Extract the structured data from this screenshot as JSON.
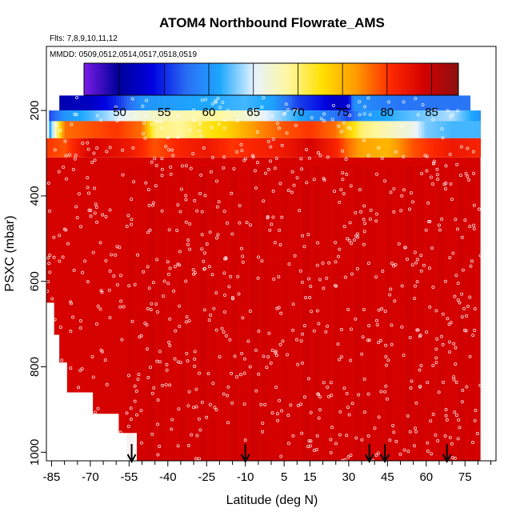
{
  "chart_data": {
    "type": "heatmap",
    "title": "ATOM4 Northbound Flowrate_AMS",
    "flights_label": "Flts: 7,8,9,10,11,12",
    "dates_label": "MMDD: 0509,0512,0514,0517,0518,0519",
    "xlabel": "Latitude (deg N)",
    "ylabel": "PSXC (mbar)",
    "xlim": [
      -87,
      87
    ],
    "ylim": [
      1020,
      50
    ],
    "y_reversed": true,
    "x_ticks": [
      -85,
      -70,
      -55,
      -40,
      -25,
      -10,
      5,
      15,
      30,
      45,
      60,
      75
    ],
    "x_minor_ticks": [
      -80,
      -75,
      -65,
      -60,
      -50,
      -45,
      -35,
      -30,
      -20,
      -15,
      -5,
      0,
      10,
      20,
      25,
      35,
      40,
      50,
      55,
      65,
      70,
      80,
      85
    ],
    "y_ticks": [
      200,
      400,
      600,
      800,
      1000
    ],
    "colorbar": {
      "min": 46,
      "max": 88,
      "ticks": [
        50,
        55,
        60,
        65,
        70,
        75,
        80,
        85
      ],
      "colors": [
        "#7a1be6",
        "#00009a",
        "#0000e0",
        "#2a6cf5",
        "#1ea8ff",
        "#e6f3ff",
        "#fff7a0",
        "#ffe000",
        "#ff9a00",
        "#ff2a00",
        "#d40000",
        "#8b1010"
      ]
    },
    "field": {
      "bulk_value": 84,
      "layers": [
        {
          "p_top": 165,
          "p_bot": 200,
          "lat_min": -82,
          "lat_max": 77,
          "profile": [
            [
              -82,
              51
            ],
            [
              -70,
              52
            ],
            [
              -60,
              55
            ],
            [
              -50,
              60
            ],
            [
              -30,
              61
            ],
            [
              -10,
              62
            ],
            [
              0,
              61
            ],
            [
              10,
              56
            ],
            [
              20,
              54
            ],
            [
              25,
              52
            ],
            [
              30,
              53
            ],
            [
              32,
              60
            ],
            [
              40,
              59
            ],
            [
              50,
              58
            ],
            [
              60,
              58
            ],
            [
              77,
              58
            ]
          ]
        },
        {
          "p_top": 200,
          "p_bot": 225,
          "lat_min": -86,
          "lat_max": 81,
          "profile": [
            [
              -86,
              56
            ],
            [
              -80,
              60
            ],
            [
              -70,
              62
            ],
            [
              -55,
              66
            ],
            [
              -40,
              68
            ],
            [
              -20,
              69
            ],
            [
              -5,
              66
            ],
            [
              5,
              63
            ],
            [
              15,
              60
            ],
            [
              25,
              58
            ],
            [
              30,
              56
            ],
            [
              35,
              60
            ],
            [
              50,
              62
            ],
            [
              60,
              63
            ],
            [
              70,
              64
            ],
            [
              81,
              60
            ]
          ]
        },
        {
          "p_top": 225,
          "p_bot": 265,
          "lat_min": -86,
          "lat_max": 81,
          "profile": [
            [
              -86,
              60
            ],
            [
              -80,
              78
            ],
            [
              -70,
              79
            ],
            [
              -60,
              80
            ],
            [
              -50,
              78
            ],
            [
              -45,
              70
            ],
            [
              -35,
              69
            ],
            [
              -25,
              72
            ],
            [
              -15,
              74
            ],
            [
              -5,
              77
            ],
            [
              5,
              79
            ],
            [
              15,
              80
            ],
            [
              25,
              78
            ],
            [
              30,
              74
            ],
            [
              35,
              70
            ],
            [
              45,
              68
            ],
            [
              55,
              66
            ],
            [
              60,
              63
            ],
            [
              70,
              62
            ],
            [
              81,
              62
            ]
          ]
        },
        {
          "p_top": 265,
          "p_bot": 310,
          "lat_min": -87,
          "lat_max": 81,
          "profile": [
            [
              -87,
              80
            ],
            [
              -80,
              79
            ],
            [
              -70,
              84
            ],
            [
              -62,
              83
            ],
            [
              -55,
              82
            ],
            [
              -45,
              79
            ],
            [
              -35,
              81
            ],
            [
              -25,
              82
            ],
            [
              -15,
              80
            ],
            [
              -5,
              81
            ],
            [
              5,
              82
            ],
            [
              15,
              84
            ],
            [
              25,
              81
            ],
            [
              30,
              78
            ],
            [
              35,
              76
            ],
            [
              45,
              75
            ],
            [
              55,
              79
            ],
            [
              60,
              80
            ],
            [
              70,
              82
            ],
            [
              81,
              81
            ]
          ]
        }
      ],
      "left_boundary": [
        [
          310,
          -87
        ],
        [
          650,
          -87
        ],
        [
          650,
          -84
        ],
        [
          725,
          -84
        ],
        [
          725,
          -82
        ],
        [
          790,
          -82
        ],
        [
          790,
          -79
        ],
        [
          860,
          -79
        ],
        [
          860,
          -69
        ],
        [
          910,
          -69
        ],
        [
          910,
          -59
        ],
        [
          955,
          -59
        ],
        [
          955,
          -52
        ],
        [
          1020,
          -52
        ]
      ],
      "right_boundary": [
        [
          310,
          81
        ],
        [
          1020,
          81
        ]
      ]
    },
    "flight_arrows": [
      -54,
      -10,
      38,
      44,
      68
    ]
  }
}
